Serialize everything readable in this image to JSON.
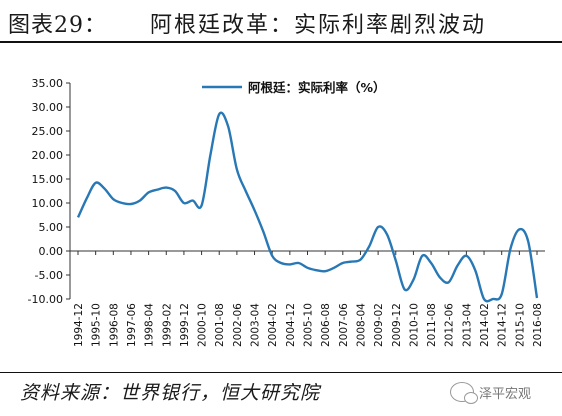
{
  "figure": {
    "number": "图表29：",
    "title": "阿根廷改革：实际利率剧烈波动",
    "source": "资料来源：世界银行，恒大研究院",
    "watermark": "泽平宏观",
    "line_color": "#2878b5"
  },
  "chart_data": {
    "type": "line",
    "legend": "阿根廷：实际利率（%）",
    "legend_position": "top-center",
    "y_ticks": [
      "35.00",
      "30.00",
      "25.00",
      "20.00",
      "15.00",
      "10.00",
      "5.00",
      "0.00",
      "-5.00",
      "-10.00"
    ],
    "ylim": [
      -10,
      35
    ],
    "x_ticks": [
      "1994-12",
      "1995-10",
      "1996-08",
      "1997-06",
      "1998-04",
      "1999-02",
      "1999-12",
      "2000-10",
      "2001-08",
      "2002-06",
      "2003-04",
      "2004-02",
      "2004-12",
      "2005-10",
      "2006-08",
      "2007-06",
      "2008-04",
      "2009-02",
      "2009-12",
      "2010-10",
      "2011-08",
      "2012-06",
      "2013-04",
      "2014-02",
      "2014-12",
      "2015-10",
      "2016-08"
    ],
    "grid": false,
    "series": [
      {
        "name": "阿根廷：实际利率（%）",
        "x": [
          "1994-12",
          "1995-05",
          "1995-10",
          "1996-03",
          "1996-08",
          "1997-01",
          "1997-06",
          "1997-11",
          "1998-04",
          "1998-09",
          "1999-02",
          "1999-07",
          "1999-12",
          "2000-05",
          "2000-10",
          "2001-03",
          "2001-08",
          "2002-01",
          "2002-06",
          "2002-11",
          "2003-04",
          "2003-09",
          "2004-02",
          "2004-07",
          "2004-12",
          "2005-05",
          "2005-10",
          "2006-03",
          "2006-08",
          "2007-01",
          "2007-06",
          "2007-11",
          "2008-04",
          "2008-09",
          "2009-02",
          "2009-07",
          "2009-12",
          "2010-05",
          "2010-10",
          "2011-03",
          "2011-08",
          "2012-01",
          "2012-06",
          "2012-11",
          "2013-04",
          "2013-09",
          "2014-02",
          "2014-07",
          "2014-12",
          "2015-05",
          "2015-10",
          "2016-03",
          "2016-08"
        ],
        "values": [
          7.0,
          11.0,
          14.2,
          13.0,
          10.8,
          10.0,
          9.8,
          10.5,
          12.2,
          12.8,
          13.2,
          12.5,
          10.0,
          10.5,
          9.5,
          20.0,
          28.5,
          26.0,
          17.0,
          12.5,
          8.5,
          4.0,
          -1.0,
          -2.5,
          -2.8,
          -2.5,
          -3.5,
          -4.0,
          -4.2,
          -3.5,
          -2.5,
          -2.2,
          -1.8,
          1.0,
          5.0,
          3.5,
          -2.0,
          -8.0,
          -6.0,
          -1.0,
          -2.5,
          -5.5,
          -6.5,
          -3.0,
          -1.0,
          -4.0,
          -10.0,
          -10.0,
          -9.0,
          0.5,
          4.5,
          2.0,
          -9.8
        ]
      }
    ]
  }
}
